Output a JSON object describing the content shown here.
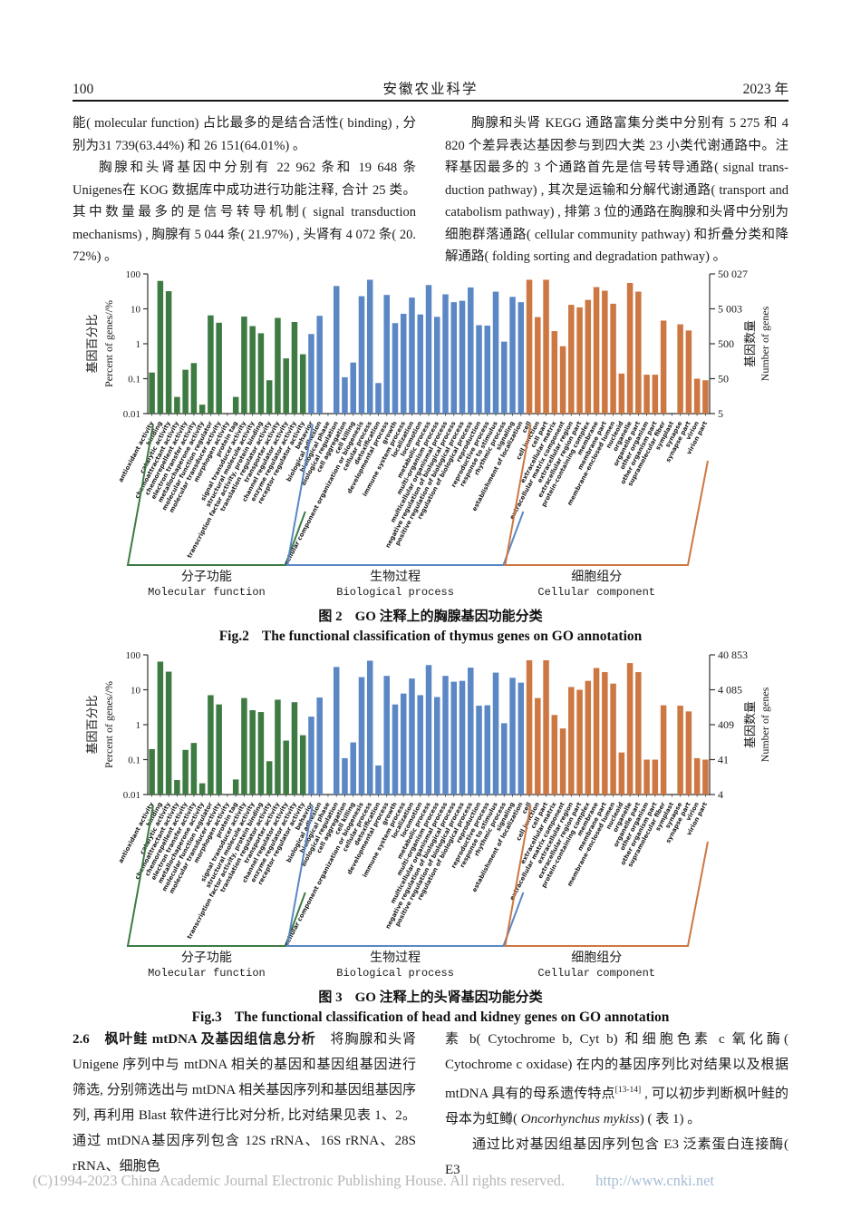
{
  "header": {
    "page_number": "100",
    "journal": "安徽农业科学",
    "year": "2023 年"
  },
  "body_top": {
    "left": [
      {
        "indent": false,
        "runs": [
          {
            "t": "能( molecular function) 占比最多的是结合活性( binding) , 分别为31 739(63.44%) 和 26 151(64.01%) 。"
          }
        ]
      },
      {
        "indent": true,
        "runs": [
          {
            "t": "胸腺和头肾基因中分别有 22 962 条和 19 648 条 Unigenes在 KOG 数据库中成功进行功能注释, 合计 25 类。其中数量最多的是信号转导机制( signal transduction mechanisms) , 胸腺有 5 044 条( 21.97%) , 头肾有 4 072 条( 20. 72%) 。"
          }
        ]
      }
    ],
    "right": [
      {
        "indent": true,
        "runs": [
          {
            "t": "胸腺和头肾 KEGG 通路富集分类中分别有 5 275 和 4 820 个差异表达基因参与到四大类 23 小类代谢通路中。注释基因最多的 3 个通路首先是信号转导通路( signal trans-duction pathway) , 其次是运输和分解代谢通路( transport and catabolism pathway) , 排第 3 位的通路在胸腺和头肾中分别为细胞群落通路( cellular community pathway) 和折叠分类和降解通路( folding sorting and degradation pathway) 。"
          }
        ]
      }
    ]
  },
  "body_bottom": {
    "left": [
      {
        "indent": false,
        "runs": [
          {
            "t": "2.6　枫叶鲑 mtDNA 及基因组信息分析",
            "bold": true
          },
          {
            "t": "　将胸腺和头肾 Unigene 序列中与 mtDNA 相关的基因和基因组基因进行筛选, 分别筛选出与 mtDNA 相关基因序列和基因组基因序列, 再利用 Blast 软件进行比对分析, 比对结果见表 1、2。通过 mtDNA基因序列包含 12S rRNA、16S rRNA、28S rRNA、细胞色"
          }
        ]
      }
    ],
    "right": [
      {
        "indent": false,
        "runs": [
          {
            "t": "素 b( Cytochrome b, Cyt b) 和细胞色素 c 氧化酶( Cytochrome c oxidase) 在内的基因序列比对结果以及根据 mtDNA 具有的母系遗传特点"
          },
          {
            "t": "[13-14]",
            "sup": true
          },
          {
            "t": " , 可以初步判断枫叶鲑的母本为虹鳟( "
          },
          {
            "t": "Oncorhynchus mykiss",
            "italic": true
          },
          {
            "t": ") ( 表 1) 。"
          }
        ]
      },
      {
        "indent": true,
        "runs": [
          {
            "t": "通过比对基因组基因序列包含 E3 泛素蛋白连接酶( E3"
          }
        ]
      }
    ]
  },
  "chart_data": [
    {
      "type": "bar",
      "caption_label_cn": "图 2",
      "caption_text_cn": "GO 注释上的胸腺基因功能分类",
      "caption_label_en": "Fig.2",
      "caption_text_en": "The functional classification of thymus genes on GO annotation",
      "y_left": {
        "label_cn": "基因百分比",
        "label_en": "Percent of genes//%",
        "scale": "log",
        "min": 0.01,
        "max": 100,
        "ticks": [
          "100",
          "10",
          "1",
          "0.1",
          "0.01"
        ]
      },
      "y_right": {
        "label_cn": "基因数量",
        "label_en": "Number of genes",
        "ticks": [
          "50 027",
          "5 003",
          "500",
          "50",
          "5"
        ]
      },
      "groups": [
        {
          "label_cn": "分子功能",
          "label_en": "Molecular function",
          "color": "#3d7b43",
          "categories": [
            "antioxidant activity",
            "binding",
            "catalytic activity",
            "chemoattractant activity",
            "chemorepellent activity",
            "electron transfer activity",
            "metallochaperone activity",
            "molecular function regulator",
            "molecular transducer activity",
            "morphogen activity",
            "protein tag",
            "signal transducer activity",
            "structural molecule activity",
            "transcription factor activity, protein binding",
            "translation regulator activity",
            "transporter activity",
            "channel regulator activity",
            "enzyme regulator activity",
            "receptor regulator activity"
          ],
          "values": [
            0.15,
            63,
            32,
            0.03,
            0.18,
            0.28,
            0.018,
            6.5,
            4.0,
            0,
            0.03,
            6.0,
            3.2,
            2.0,
            0.09,
            5.5,
            0.38,
            4.2,
            0.5
          ]
        },
        {
          "label_cn": "生物过程",
          "label_en": "Biological process",
          "color": "#5b87c5",
          "categories": [
            "behavior",
            "biological adhesion",
            "biological phase",
            "biological regulation",
            "cell aggregation",
            "cell killing",
            "cellular component organization or biogenesis",
            "cellular process",
            "detoxification",
            "developmental process",
            "growth",
            "immune system process",
            "localization",
            "locomotion",
            "metabolic process",
            "multi-organism process",
            "multicellular organismal process",
            "negative regulation of biological process",
            "positive regulation of biological process",
            "regulation of biological process",
            "reproduction",
            "reproductive process",
            "response to stimulus",
            "rhythmic process",
            "signaling",
            "establishment of localization"
          ],
          "values": [
            1.9,
            6.3,
            0,
            45,
            0.11,
            0.29,
            23,
            68,
            0.075,
            25,
            3.9,
            7.2,
            21,
            6.9,
            48,
            5.9,
            26,
            15.5,
            17,
            41,
            3.4,
            3.3,
            31,
            1.15,
            22,
            15.5
          ]
        },
        {
          "label_cn": "细胞组分",
          "label_en": "Cellular component",
          "color": "#cd7742",
          "categories": [
            "cell",
            "cell junction",
            "cell part",
            "extracellular matrix",
            "extracellular matrix component",
            "extracellular region",
            "extracellular region part",
            "protein-containing complex",
            "membrane",
            "membrane part",
            "membrane-enclosed lumen",
            "nucleoid",
            "organelle",
            "organelle part",
            "other organism",
            "other organism part",
            "supramolecular fiber",
            "symplast",
            "synapse",
            "synapse part",
            "virion",
            "virion part"
          ],
          "values": [
            68,
            5.8,
            68,
            2.3,
            0.85,
            13,
            11,
            18,
            42,
            33,
            14,
            0.14,
            55,
            31,
            0.13,
            0.13,
            4.6,
            0,
            3.6,
            2.4,
            0.1,
            0.09
          ]
        }
      ]
    },
    {
      "type": "bar",
      "caption_label_cn": "图 3",
      "caption_text_cn": "GO 注释上的头肾基因功能分类",
      "caption_label_en": "Fig.3",
      "caption_text_en": "The functional classification of head and kidney genes on GO annotation",
      "y_left": {
        "label_cn": "基因百分比",
        "label_en": "Percent of genes//%",
        "scale": "log",
        "min": 0.01,
        "max": 100,
        "ticks": [
          "100",
          "10",
          "1",
          "0.1",
          "0.01"
        ]
      },
      "y_right": {
        "label_cn": "基因数量",
        "label_en": "Number of genes",
        "ticks": [
          "40 853",
          "4 085",
          "409",
          "41",
          "4"
        ]
      },
      "groups": [
        {
          "label_cn": "分子功能",
          "label_en": "Molecular function",
          "color": "#3d7b43",
          "categories": [
            "antioxidant activity",
            "binding",
            "catalytic activity",
            "chemoattractant activity",
            "chemorepellent activity",
            "electron transfer activity",
            "metallochaperone activity",
            "molecular function regulator",
            "molecular transducer activity",
            "morphogen activity",
            "protein tag",
            "signal transducer activity",
            "structural molecule activity",
            "transcription factor activity, protein binding",
            "translation regulator activity",
            "transporter activity",
            "channel regulator activity",
            "enzyme regulator activity",
            "receptor regulator activity"
          ],
          "values": [
            0.2,
            64,
            33,
            0.026,
            0.19,
            0.3,
            0.021,
            7.0,
            3.8,
            0,
            0.027,
            5.8,
            2.6,
            2.3,
            0.09,
            5.2,
            0.35,
            4.4,
            0.5
          ]
        },
        {
          "label_cn": "生物过程",
          "label_en": "Biological process",
          "color": "#5b87c5",
          "categories": [
            "behavior",
            "biological adhesion",
            "biological phase",
            "biological regulation",
            "cell aggregation",
            "cell killing",
            "cellular component organization or biogenesis",
            "cellular process",
            "detoxification",
            "developmental process",
            "growth",
            "immune system process",
            "localization",
            "locomotion",
            "metabolic process",
            "multi-organism process",
            "multicellular organismal process",
            "negative regulation of biological process",
            "positive regulation of biological process",
            "regulation of biological process",
            "reproduction",
            "reproductive process",
            "response to stimulus",
            "rhythmic process",
            "signaling",
            "establishment of localization"
          ],
          "values": [
            1.7,
            6.0,
            0,
            45,
            0.11,
            0.31,
            23,
            68,
            0.068,
            25,
            3.8,
            7.8,
            21,
            7.0,
            51,
            6.2,
            25,
            17,
            18,
            43,
            3.5,
            3.6,
            31,
            1.1,
            22,
            16
          ]
        },
        {
          "label_cn": "细胞组分",
          "label_en": "Cellular component",
          "color": "#cd7742",
          "categories": [
            "cell",
            "cell junction",
            "cell part",
            "extracellular matrix",
            "extracellular matrix component",
            "extracellular region",
            "extracellular region part",
            "protein-containing complex",
            "membrane",
            "membrane part",
            "membrane-enclosed lumen",
            "nucleoid",
            "organelle",
            "organelle part",
            "other organism",
            "other organism part",
            "supramolecular fiber",
            "symplast",
            "synapse",
            "synapse part",
            "virion",
            "virion part"
          ],
          "values": [
            70,
            5.8,
            70,
            1.9,
            0.78,
            12,
            10,
            18,
            42,
            32,
            15,
            0.16,
            58,
            32,
            0.1,
            0.1,
            3.6,
            0,
            3.5,
            2.4,
            0.11,
            0.1
          ]
        }
      ]
    }
  ],
  "footer": {
    "copyright": "(C)1994-2023 China Academic Journal Electronic Publishing House. All rights reserved.",
    "url": "http://www.cnki.net"
  }
}
